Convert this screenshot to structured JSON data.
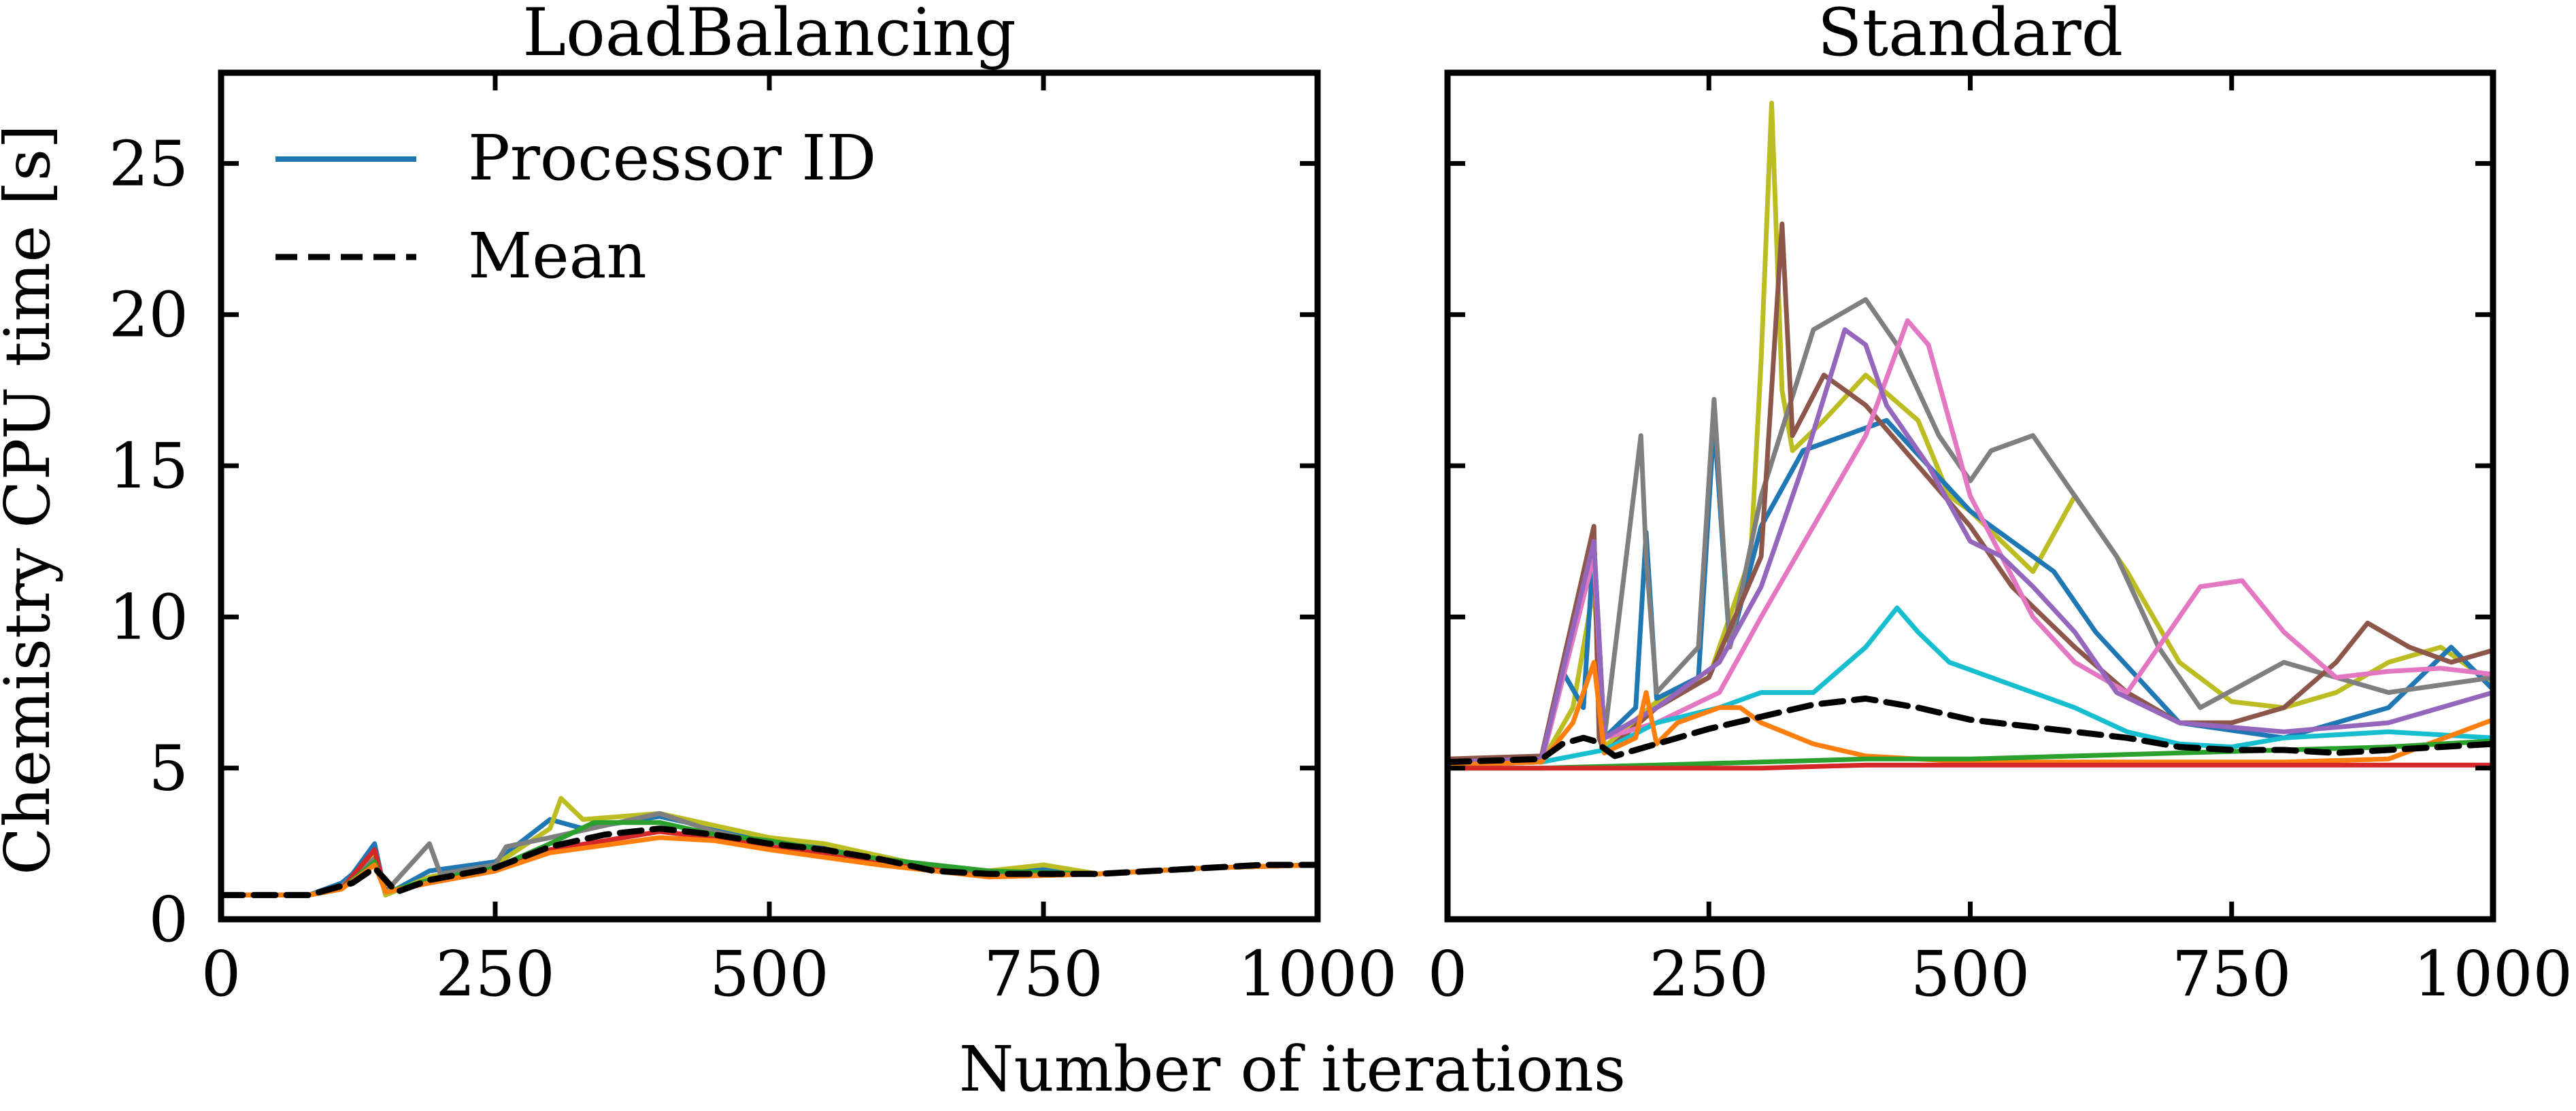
{
  "figure": {
    "xlabel": "Number of iterations",
    "ylabel": "Chemistry CPU time [s]",
    "legend": {
      "placement": "top-left",
      "entries": [
        {
          "label": "Processor ID",
          "style": "solid",
          "color": "#1f77b4"
        },
        {
          "label": "Mean",
          "style": "dashed",
          "color": "#000000"
        }
      ]
    },
    "palette": [
      "#1f77b4",
      "#ff7f0e",
      "#2ca02c",
      "#d62728",
      "#9467bd",
      "#8c564b",
      "#e377c2",
      "#7f7f7f",
      "#bcbd22",
      "#17becf"
    ]
  },
  "chart_data": [
    {
      "type": "line",
      "title": "LoadBalancing",
      "xlim": [
        0,
        1000
      ],
      "ylim": [
        0,
        28
      ],
      "xticks": [
        0,
        250,
        500,
        750,
        1000
      ],
      "yticks": [
        0,
        5,
        10,
        15,
        20,
        25
      ],
      "shared_y_tick_labels": true,
      "series": [
        {
          "name": "Mean",
          "style": "dashed",
          "color": "#000000",
          "x": [
            0,
            80,
            100,
            120,
            140,
            160,
            190,
            250,
            300,
            350,
            400,
            450,
            500,
            550,
            600,
            650,
            700,
            750,
            800,
            850,
            900,
            950,
            1000
          ],
          "y": [
            0.8,
            0.8,
            1.0,
            1.2,
            1.7,
            0.9,
            1.3,
            1.7,
            2.4,
            2.8,
            3.0,
            2.8,
            2.5,
            2.3,
            2.0,
            1.6,
            1.5,
            1.5,
            1.5,
            1.6,
            1.7,
            1.8,
            1.8
          ]
        },
        {
          "color": "#1f77b4",
          "x": [
            0,
            80,
            110,
            120,
            140,
            150,
            190,
            250,
            300,
            330,
            400,
            450,
            500,
            550,
            600,
            650,
            700,
            750,
            800,
            900,
            1000
          ],
          "y": [
            0.8,
            0.8,
            1.2,
            1.5,
            2.5,
            0.8,
            1.6,
            1.9,
            3.3,
            3.0,
            3.4,
            3.0,
            2.6,
            2.4,
            2.1,
            1.7,
            1.5,
            1.7,
            1.5,
            1.7,
            1.8
          ]
        },
        {
          "color": "#bcbd22",
          "x": [
            0,
            80,
            110,
            120,
            140,
            150,
            190,
            250,
            300,
            310,
            330,
            400,
            450,
            500,
            550,
            600,
            650,
            700,
            750,
            800,
            900,
            1000
          ],
          "y": [
            0.8,
            0.8,
            1.1,
            1.3,
            2.2,
            0.8,
            1.4,
            1.8,
            3.0,
            4.0,
            3.3,
            3.5,
            3.1,
            2.7,
            2.5,
            2.1,
            1.7,
            1.6,
            1.8,
            1.5,
            1.7,
            1.8
          ]
        },
        {
          "color": "#7f7f7f",
          "x": [
            0,
            80,
            110,
            140,
            150,
            190,
            200,
            250,
            260,
            300,
            400,
            450,
            500,
            600,
            700,
            800,
            900,
            1000
          ],
          "y": [
            0.8,
            0.8,
            1.1,
            2.0,
            0.9,
            2.5,
            1.5,
            1.8,
            2.4,
            2.7,
            3.5,
            2.9,
            2.5,
            2.0,
            1.5,
            1.5,
            1.7,
            1.8
          ]
        },
        {
          "color": "#d62728",
          "x": [
            0,
            80,
            110,
            140,
            150,
            190,
            250,
            300,
            400,
            450,
            500,
            600,
            700,
            800,
            900,
            1000
          ],
          "y": [
            0.8,
            0.8,
            1.0,
            2.3,
            0.9,
            1.2,
            1.6,
            2.3,
            2.9,
            2.7,
            2.4,
            1.9,
            1.4,
            1.5,
            1.7,
            1.8
          ]
        },
        {
          "color": "#2ca02c",
          "x": [
            0,
            80,
            110,
            140,
            150,
            190,
            250,
            300,
            340,
            400,
            450,
            500,
            600,
            700,
            800,
            900,
            1000
          ],
          "y": [
            0.8,
            0.8,
            1.0,
            1.9,
            0.9,
            1.3,
            1.7,
            2.5,
            3.2,
            3.2,
            2.8,
            2.6,
            2.0,
            1.6,
            1.5,
            1.7,
            1.8
          ]
        },
        {
          "color": "#ff7f0e",
          "x": [
            0,
            80,
            110,
            140,
            150,
            190,
            250,
            300,
            400,
            450,
            500,
            600,
            700,
            800,
            900,
            1000
          ],
          "y": [
            0.8,
            0.8,
            1.0,
            1.8,
            0.9,
            1.2,
            1.6,
            2.2,
            2.7,
            2.6,
            2.3,
            1.8,
            1.4,
            1.5,
            1.7,
            1.8
          ]
        }
      ]
    },
    {
      "type": "line",
      "title": "Standard",
      "xlim": [
        0,
        1000
      ],
      "ylim": [
        0,
        28
      ],
      "xticks": [
        0,
        250,
        500,
        750,
        1000
      ],
      "yticks": [
        0,
        5,
        10,
        15,
        20,
        25
      ],
      "shared_y_tick_labels": true,
      "series": [
        {
          "name": "Mean",
          "style": "dashed",
          "color": "#000000",
          "x": [
            0,
            90,
            110,
            130,
            140,
            160,
            200,
            250,
            300,
            350,
            400,
            450,
            500,
            550,
            600,
            650,
            700,
            750,
            800,
            850,
            900,
            950,
            1000
          ],
          "y": [
            5.2,
            5.3,
            5.8,
            6.0,
            5.9,
            5.4,
            5.8,
            6.3,
            6.7,
            7.1,
            7.3,
            7.0,
            6.6,
            6.4,
            6.2,
            6.0,
            5.7,
            5.6,
            5.6,
            5.5,
            5.6,
            5.7,
            5.8
          ]
        },
        {
          "color": "#bcbd22",
          "x": [
            0,
            90,
            120,
            140,
            150,
            200,
            250,
            290,
            300,
            310,
            320,
            330,
            360,
            400,
            450,
            480,
            500,
            560,
            600,
            650,
            700,
            750,
            800,
            850,
            900,
            950,
            1000
          ],
          "y": [
            5.1,
            5.2,
            7.0,
            11.0,
            5.7,
            7.2,
            8.0,
            12.0,
            18.5,
            27.0,
            17.5,
            15.5,
            16.5,
            18.0,
            16.5,
            14.0,
            13.5,
            11.5,
            14.0,
            11.5,
            8.5,
            7.2,
            7.0,
            7.5,
            8.5,
            9.0,
            7.8
          ]
        },
        {
          "color": "#1f77b4",
          "x": [
            0,
            90,
            110,
            130,
            140,
            150,
            180,
            190,
            200,
            240,
            255,
            270,
            300,
            340,
            380,
            420,
            460,
            500,
            540,
            580,
            620,
            660,
            700,
            800,
            900,
            960,
            1000
          ],
          "y": [
            5.2,
            5.3,
            8.2,
            7.0,
            12.5,
            6.0,
            7.0,
            12.8,
            7.3,
            8.0,
            16.5,
            9.0,
            13.0,
            15.5,
            16.0,
            16.5,
            15.0,
            13.5,
            12.5,
            11.5,
            9.5,
            8.0,
            6.5,
            6.0,
            7.0,
            9.0,
            7.6
          ]
        },
        {
          "color": "#7f7f7f",
          "x": [
            0,
            90,
            140,
            150,
            185,
            190,
            200,
            240,
            255,
            270,
            300,
            350,
            400,
            430,
            470,
            500,
            520,
            560,
            600,
            640,
            680,
            720,
            800,
            900,
            1000
          ],
          "y": [
            5.2,
            5.3,
            12.0,
            6.0,
            16.0,
            12.0,
            7.5,
            9.0,
            17.2,
            9.0,
            14.0,
            19.5,
            20.5,
            19.0,
            16.0,
            14.5,
            15.5,
            16.0,
            14.0,
            12.0,
            9.0,
            7.0,
            8.5,
            7.5,
            8.0
          ]
        },
        {
          "color": "#8c564b",
          "x": [
            0,
            90,
            140,
            145,
            150,
            200,
            250,
            300,
            320,
            330,
            360,
            400,
            450,
            500,
            540,
            600,
            650,
            700,
            750,
            800,
            850,
            880,
            920,
            960,
            1000
          ],
          "y": [
            5.3,
            5.4,
            13.0,
            6.0,
            5.5,
            7.0,
            8.0,
            12.0,
            23.0,
            16.0,
            18.0,
            17.0,
            15.0,
            13.0,
            11.0,
            9.0,
            7.5,
            6.5,
            6.5,
            7.0,
            8.5,
            9.8,
            9.0,
            8.5,
            8.9
          ]
        },
        {
          "color": "#e377c2",
          "x": [
            0,
            90,
            140,
            150,
            200,
            260,
            300,
            350,
            400,
            440,
            460,
            500,
            560,
            600,
            650,
            700,
            720,
            760,
            800,
            850,
            900,
            950,
            1000
          ],
          "y": [
            5.1,
            5.2,
            12.0,
            6.0,
            6.5,
            7.5,
            10.0,
            13.0,
            16.0,
            19.8,
            19.0,
            14.0,
            10.0,
            8.5,
            7.5,
            10.0,
            11.0,
            11.2,
            9.5,
            8.0,
            8.2,
            8.3,
            8.1
          ]
        },
        {
          "color": "#9467bd",
          "x": [
            0,
            90,
            140,
            150,
            200,
            260,
            300,
            340,
            380,
            400,
            420,
            460,
            500,
            530,
            560,
            600,
            640,
            700,
            800,
            900,
            1000
          ],
          "y": [
            5.2,
            5.3,
            12.5,
            6.0,
            7.0,
            8.5,
            11.0,
            15.0,
            19.5,
            19.0,
            17.0,
            15.0,
            12.5,
            12.0,
            11.0,
            9.5,
            7.5,
            6.5,
            6.2,
            6.5,
            7.5
          ]
        },
        {
          "color": "#17becf",
          "x": [
            0,
            90,
            150,
            200,
            260,
            300,
            350,
            400,
            430,
            450,
            480,
            520,
            560,
            600,
            650,
            700,
            750,
            800,
            900,
            1000
          ],
          "y": [
            5.1,
            5.2,
            5.6,
            6.5,
            7.0,
            7.5,
            7.5,
            9.0,
            10.3,
            9.5,
            8.5,
            8.0,
            7.5,
            7.0,
            6.2,
            5.8,
            5.7,
            6.0,
            6.2,
            6.0
          ]
        },
        {
          "color": "#ff7f0e",
          "x": [
            0,
            90,
            120,
            140,
            150,
            180,
            190,
            200,
            220,
            260,
            280,
            300,
            350,
            400,
            450,
            500,
            600,
            700,
            800,
            900,
            1000
          ],
          "y": [
            5.1,
            5.2,
            6.5,
            8.5,
            5.5,
            6.0,
            7.5,
            5.8,
            6.5,
            7.0,
            7.0,
            6.5,
            5.8,
            5.4,
            5.3,
            5.2,
            5.2,
            5.2,
            5.2,
            5.3,
            6.6
          ]
        },
        {
          "color": "#2ca02c",
          "x": [
            0,
            90,
            200,
            300,
            400,
            500,
            600,
            700,
            800,
            900,
            1000
          ],
          "y": [
            5.0,
            5.0,
            5.1,
            5.2,
            5.3,
            5.3,
            5.4,
            5.5,
            5.6,
            5.7,
            5.9
          ]
        },
        {
          "color": "#d62728",
          "x": [
            0,
            90,
            200,
            300,
            400,
            500,
            600,
            700,
            800,
            900,
            1000
          ],
          "y": [
            5.0,
            5.0,
            5.0,
            5.0,
            5.1,
            5.1,
            5.1,
            5.1,
            5.1,
            5.1,
            5.1
          ]
        }
      ]
    }
  ]
}
